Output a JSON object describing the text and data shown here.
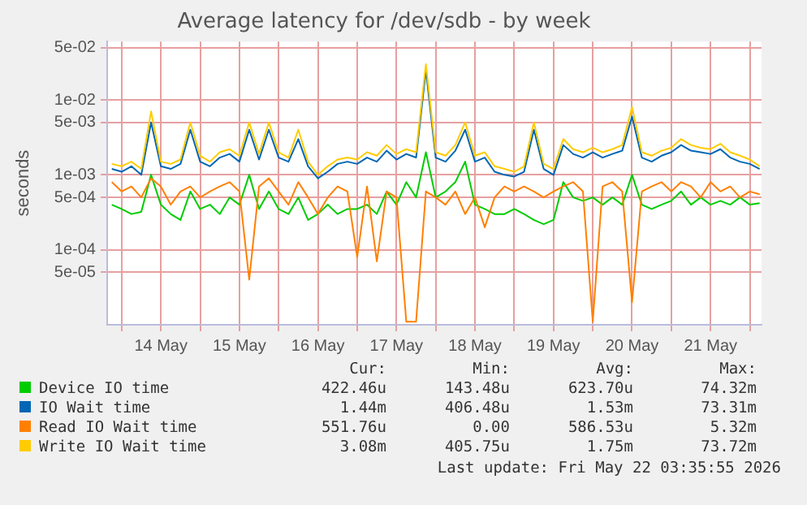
{
  "chart_data": {
    "type": "line",
    "title": "Average latency for /dev/sdb - by week",
    "ylabel": "seconds",
    "log": "y",
    "grid": true,
    "legend": "bottom",
    "marker": "none",
    "line_style": "solid",
    "xlim": [
      "2026-05-13T19:35",
      "2026-05-22T03:35"
    ],
    "xticks": [
      {
        "value": "2026-05-14T00:00",
        "label": null
      },
      {
        "value": "2026-05-14T12:00",
        "label": "14 May"
      },
      {
        "value": "2026-05-15T00:00",
        "label": null
      },
      {
        "value": "2026-05-15T12:00",
        "label": "15 May"
      },
      {
        "value": "2026-05-16T00:00",
        "label": null
      },
      {
        "value": "2026-05-16T12:00",
        "label": "16 May"
      },
      {
        "value": "2026-05-17T00:00",
        "label": null
      },
      {
        "value": "2026-05-17T12:00",
        "label": "17 May"
      },
      {
        "value": "2026-05-18T00:00",
        "label": null
      },
      {
        "value": "2026-05-18T12:00",
        "label": "18 May"
      },
      {
        "value": "2026-05-19T00:00",
        "label": null
      },
      {
        "value": "2026-05-19T12:00",
        "label": "19 May"
      },
      {
        "value": "2026-05-20T00:00",
        "label": null
      },
      {
        "value": "2026-05-20T12:00",
        "label": "20 May"
      },
      {
        "value": "2026-05-21T00:00",
        "label": null
      },
      {
        "value": "2026-05-21T12:00",
        "label": "21 May"
      },
      {
        "value": "2026-05-22T00:00",
        "label": null
      }
    ],
    "ylim": [
      1e-05,
      0.06
    ],
    "yticks": [
      {
        "value": 5e-05,
        "label": "5e-05"
      },
      {
        "value": 0.0001,
        "label": "1e-04"
      },
      {
        "value": 0.0005,
        "label": "5e-04"
      },
      {
        "value": 0.001,
        "label": "1e-03"
      },
      {
        "value": 0.005,
        "label": "5e-03"
      },
      {
        "value": 0.01,
        "label": "1e-02"
      },
      {
        "value": 0.05,
        "label": "5e-02"
      }
    ],
    "x": [
      "2026-05-13T21:00",
      "2026-05-14T00:00",
      "2026-05-14T03:00",
      "2026-05-14T06:00",
      "2026-05-14T09:00",
      "2026-05-14T12:00",
      "2026-05-14T15:00",
      "2026-05-14T18:00",
      "2026-05-14T21:00",
      "2026-05-15T00:00",
      "2026-05-15T03:00",
      "2026-05-15T06:00",
      "2026-05-15T09:00",
      "2026-05-15T12:00",
      "2026-05-15T15:00",
      "2026-05-15T18:00",
      "2026-05-15T21:00",
      "2026-05-16T00:00",
      "2026-05-16T03:00",
      "2026-05-16T06:00",
      "2026-05-16T09:00",
      "2026-05-16T12:00",
      "2026-05-16T15:00",
      "2026-05-16T18:00",
      "2026-05-16T21:00",
      "2026-05-17T00:00",
      "2026-05-17T03:00",
      "2026-05-17T06:00",
      "2026-05-17T09:00",
      "2026-05-17T12:00",
      "2026-05-17T15:00",
      "2026-05-17T18:00",
      "2026-05-17T21:00",
      "2026-05-18T00:00",
      "2026-05-18T03:00",
      "2026-05-18T06:00",
      "2026-05-18T09:00",
      "2026-05-18T12:00",
      "2026-05-18T15:00",
      "2026-05-18T18:00",
      "2026-05-18T21:00",
      "2026-05-19T00:00",
      "2026-05-19T03:00",
      "2026-05-19T06:00",
      "2026-05-19T09:00",
      "2026-05-19T12:00",
      "2026-05-19T15:00",
      "2026-05-19T18:00",
      "2026-05-19T21:00",
      "2026-05-20T00:00",
      "2026-05-20T03:00",
      "2026-05-20T06:00",
      "2026-05-20T09:00",
      "2026-05-20T12:00",
      "2026-05-20T15:00",
      "2026-05-20T18:00",
      "2026-05-20T21:00",
      "2026-05-21T00:00",
      "2026-05-21T03:00",
      "2026-05-21T06:00",
      "2026-05-21T09:00",
      "2026-05-21T12:00",
      "2026-05-21T15:00",
      "2026-05-21T18:00",
      "2026-05-21T21:00",
      "2026-05-22T00:00",
      "2026-05-22T03:00"
    ],
    "series": [
      {
        "name": "Device IO time",
        "color": "#00cc00",
        "values": [
          0.0004,
          0.00035,
          0.0003,
          0.00032,
          0.001,
          0.0004,
          0.0003,
          0.00025,
          0.0006,
          0.00035,
          0.0004,
          0.0003,
          0.0005,
          0.0004,
          0.001,
          0.00035,
          0.0006,
          0.00035,
          0.0003,
          0.0005,
          0.00025,
          0.0003,
          0.0004,
          0.0003,
          0.00035,
          0.00035,
          0.0004,
          0.0003,
          0.0006,
          0.0004,
          0.0008,
          0.0005,
          0.002,
          0.0005,
          0.0006,
          0.0008,
          0.0015,
          0.0004,
          0.00035,
          0.0003,
          0.0003,
          0.00035,
          0.0003,
          0.00025,
          0.00022,
          0.00025,
          0.0008,
          0.0005,
          0.00045,
          0.0005,
          0.0004,
          0.0005,
          0.0004,
          0.001,
          0.0004,
          0.00035,
          0.0004,
          0.00045,
          0.0006,
          0.0004,
          0.0005,
          0.0004,
          0.00045,
          0.0004,
          0.0005,
          0.0004,
          0.00042
        ]
      },
      {
        "name": "IO Wait time",
        "color": "#0066b3",
        "values": [
          0.0012,
          0.0011,
          0.0013,
          0.001,
          0.005,
          0.0013,
          0.0012,
          0.0014,
          0.004,
          0.0015,
          0.0013,
          0.0017,
          0.0019,
          0.0015,
          0.004,
          0.0016,
          0.004,
          0.0017,
          0.0015,
          0.003,
          0.0013,
          0.0009,
          0.0011,
          0.0014,
          0.0015,
          0.0014,
          0.0017,
          0.0015,
          0.0021,
          0.0016,
          0.0019,
          0.0017,
          0.025,
          0.0017,
          0.0015,
          0.0021,
          0.004,
          0.0015,
          0.0017,
          0.0011,
          0.001,
          0.00095,
          0.0011,
          0.004,
          0.0012,
          0.001,
          0.0025,
          0.0019,
          0.0017,
          0.002,
          0.0017,
          0.0019,
          0.0021,
          0.006,
          0.0017,
          0.0015,
          0.0018,
          0.002,
          0.0025,
          0.0021,
          0.002,
          0.0019,
          0.0022,
          0.0017,
          0.0015,
          0.0014,
          0.0012
        ]
      },
      {
        "name": "Read IO Wait time",
        "color": "#ff8000",
        "values": [
          0.0008,
          0.0006,
          0.0007,
          0.0005,
          0.0009,
          0.0007,
          0.0004,
          0.0006,
          0.0007,
          0.0005,
          0.0006,
          0.0007,
          0.0008,
          0.0006,
          4e-05,
          0.0007,
          0.0009,
          0.0006,
          0.0004,
          0.0008,
          0.0005,
          0.0003,
          0.0005,
          0.0007,
          0.0006,
          8e-05,
          0.0007,
          7e-05,
          0.0006,
          0.0005,
          1.1e-05,
          1.1e-05,
          0.0006,
          0.0005,
          0.0004,
          0.0006,
          0.0003,
          0.0005,
          0.0002,
          0.0005,
          0.0007,
          0.0006,
          0.0007,
          0.0006,
          0.0005,
          0.0006,
          0.0007,
          0.0008,
          0.0006,
          1.1e-05,
          0.0007,
          0.0008,
          0.0006,
          2e-05,
          0.0006,
          0.0007,
          0.0008,
          0.0006,
          0.0008,
          0.0007,
          0.0005,
          0.0008,
          0.0006,
          0.0007,
          0.0005,
          0.0006,
          0.00055
        ]
      },
      {
        "name": "Write IO Wait time",
        "color": "#ffcc00",
        "values": [
          0.0014,
          0.0013,
          0.0015,
          0.0012,
          0.007,
          0.0015,
          0.0014,
          0.0016,
          0.005,
          0.0018,
          0.0015,
          0.002,
          0.0022,
          0.0018,
          0.005,
          0.0019,
          0.005,
          0.002,
          0.0017,
          0.004,
          0.0015,
          0.001,
          0.0013,
          0.0016,
          0.0017,
          0.0016,
          0.002,
          0.0018,
          0.0025,
          0.0019,
          0.0022,
          0.002,
          0.03,
          0.002,
          0.0018,
          0.0025,
          0.005,
          0.0018,
          0.002,
          0.0013,
          0.0012,
          0.0011,
          0.0013,
          0.005,
          0.0014,
          0.0012,
          0.003,
          0.0022,
          0.002,
          0.0023,
          0.002,
          0.0022,
          0.0025,
          0.008,
          0.002,
          0.0018,
          0.0021,
          0.0023,
          0.003,
          0.0025,
          0.0023,
          0.0022,
          0.0026,
          0.002,
          0.0018,
          0.0016,
          0.0013
        ]
      }
    ],
    "annotations": [
      "Cur:",
      "Min:",
      "Avg:",
      "Max:",
      "422.46u",
      "143.48u",
      "623.70u",
      "74.32m",
      "1.44m",
      "406.48u",
      "1.53m",
      "73.31m",
      "551.76u",
      "0.00",
      "586.53u",
      "5.32m",
      "3.08m",
      "405.75u",
      "1.75m",
      "73.72m",
      "Last update: Fri May 22 03:35:55 2026"
    ]
  }
}
